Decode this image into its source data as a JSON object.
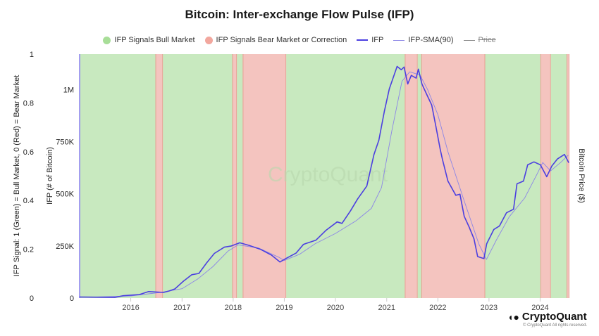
{
  "chart_data": {
    "type": "line",
    "title": "Bitcoin: Inter-exchange Flow Pulse (IFP)",
    "legend": [
      {
        "label": "IFP Signals Bull Market",
        "color": "#a8de98",
        "marker": "dot"
      },
      {
        "label": "IFP Signals Bear Market or Correction",
        "color": "#f2a79e",
        "marker": "dot"
      },
      {
        "label": "IFP",
        "color": "#4b3fe0",
        "marker": "line"
      },
      {
        "label": "IFP-SMA(90)",
        "color": "#8c86e6",
        "marker": "thin-line"
      },
      {
        "label": "Price",
        "color": "#777777",
        "marker": "line",
        "hidden": true
      }
    ],
    "legend_placement": "top",
    "y_left_outer": {
      "label": "IFP Signal: 1 (Green) = Bull Market, 0 (Red) = Bear Market",
      "range": [
        0,
        1
      ],
      "ticks": [
        "0",
        "0.2",
        "0.4",
        "0.6",
        "0.8",
        "1"
      ]
    },
    "y_left_inner": {
      "label": "IFP (# of Bitcoin)",
      "range": [
        0,
        1170000
      ],
      "ticks": [
        {
          "v": 0,
          "t": "0"
        },
        {
          "v": 250000,
          "t": "250K"
        },
        {
          "v": 500000,
          "t": "500K"
        },
        {
          "v": 750000,
          "t": "750K"
        },
        {
          "v": 1000000,
          "t": "1M"
        }
      ]
    },
    "y_right": {
      "label": "Bitcoin Price ($)"
    },
    "x_axis": {
      "range": [
        "2015-01-01",
        "2024-07-28"
      ],
      "ticks": [
        "2016",
        "2017",
        "2018",
        "2019",
        "2020",
        "2021",
        "2022",
        "2023",
        "2024"
      ]
    },
    "grid": false,
    "watermark": "CryptoQuant",
    "signal_regimes": [
      {
        "start": "2015-01-01",
        "end": "2016-06-25",
        "signal": 1
      },
      {
        "start": "2016-06-25",
        "end": "2016-08-18",
        "signal": 0
      },
      {
        "start": "2016-08-18",
        "end": "2017-12-25",
        "signal": 1
      },
      {
        "start": "2017-12-25",
        "end": "2018-01-28",
        "signal": 0
      },
      {
        "start": "2018-01-28",
        "end": "2018-03-10",
        "signal": 1
      },
      {
        "start": "2018-03-10",
        "end": "2019-01-15",
        "signal": 0
      },
      {
        "start": "2019-01-15",
        "end": "2021-05-10",
        "signal": 1
      },
      {
        "start": "2021-05-10",
        "end": "2021-08-10",
        "signal": 0
      },
      {
        "start": "2021-08-10",
        "end": "2021-09-05",
        "signal": 1
      },
      {
        "start": "2021-09-05",
        "end": "2022-12-05",
        "signal": 0
      },
      {
        "start": "2022-12-05",
        "end": "2024-01-03",
        "signal": 1
      },
      {
        "start": "2024-01-03",
        "end": "2024-03-18",
        "signal": 0
      },
      {
        "start": "2024-03-18",
        "end": "2024-07-08",
        "signal": 1
      },
      {
        "start": "2024-07-08",
        "end": "2024-07-28",
        "signal": 0
      }
    ],
    "series": [
      {
        "name": "IFP",
        "points": [
          [
            "2015-01-01",
            5000
          ],
          [
            "2015-09-09",
            3000
          ],
          [
            "2015-11-08",
            11000
          ],
          [
            "2016-03-03",
            17000
          ],
          [
            "2016-05-08",
            31000
          ],
          [
            "2016-08-22",
            27000
          ],
          [
            "2016-10-02",
            34000
          ],
          [
            "2016-11-11",
            44000
          ],
          [
            "2017-01-11",
            81000
          ],
          [
            "2017-03-12",
            112000
          ],
          [
            "2017-05-01",
            118000
          ],
          [
            "2017-06-26",
            169000
          ],
          [
            "2017-08-20",
            214000
          ],
          [
            "2017-10-30",
            244000
          ],
          [
            "2017-12-19",
            250000
          ],
          [
            "2018-02-17",
            265000
          ],
          [
            "2018-04-23",
            253000
          ],
          [
            "2018-07-18",
            233000
          ],
          [
            "2018-10-01",
            206000
          ],
          [
            "2018-12-01",
            173000
          ],
          [
            "2019-01-11",
            189000
          ],
          [
            "2019-03-27",
            216000
          ],
          [
            "2019-05-17",
            257000
          ],
          [
            "2019-06-01",
            261000
          ],
          [
            "2019-08-15",
            278000
          ],
          [
            "2019-10-24",
            324000
          ],
          [
            "2020-01-13",
            365000
          ],
          [
            "2020-02-17",
            358000
          ],
          [
            "2020-04-18",
            419000
          ],
          [
            "2020-06-08",
            476000
          ],
          [
            "2020-08-12",
            537000
          ],
          [
            "2020-10-02",
            689000
          ],
          [
            "2020-11-06",
            757000
          ],
          [
            "2020-12-16",
            899000
          ],
          [
            "2021-01-20",
            1004000
          ],
          [
            "2021-03-16",
            1111000
          ],
          [
            "2021-04-15",
            1095000
          ],
          [
            "2021-05-05",
            1108000
          ],
          [
            "2021-05-31",
            1027000
          ],
          [
            "2021-06-25",
            1068000
          ],
          [
            "2021-07-30",
            1055000
          ],
          [
            "2021-08-15",
            1098000
          ],
          [
            "2021-09-09",
            1027000
          ],
          [
            "2021-10-14",
            976000
          ],
          [
            "2021-11-18",
            926000
          ],
          [
            "2021-12-18",
            824000
          ],
          [
            "2022-01-18",
            713000
          ],
          [
            "2022-02-02",
            667000
          ],
          [
            "2022-03-14",
            561000
          ],
          [
            "2022-05-09",
            493000
          ],
          [
            "2022-06-08",
            498000
          ],
          [
            "2022-07-08",
            392000
          ],
          [
            "2022-08-12",
            341000
          ],
          [
            "2022-09-16",
            284000
          ],
          [
            "2022-10-12",
            199000
          ],
          [
            "2022-11-26",
            189000
          ],
          [
            "2022-12-16",
            261000
          ],
          [
            "2023-02-05",
            329000
          ],
          [
            "2023-03-17",
            346000
          ],
          [
            "2023-05-06",
            409000
          ],
          [
            "2023-06-25",
            426000
          ],
          [
            "2023-07-20",
            548000
          ],
          [
            "2023-09-04",
            561000
          ],
          [
            "2023-10-04",
            639000
          ],
          [
            "2023-11-18",
            653000
          ],
          [
            "2024-01-03",
            639000
          ],
          [
            "2024-02-17",
            582000
          ],
          [
            "2024-03-24",
            633000
          ],
          [
            "2024-05-03",
            667000
          ],
          [
            "2024-06-23",
            689000
          ],
          [
            "2024-07-23",
            650000
          ]
        ]
      },
      {
        "name": "IFP-SMA(90)",
        "points": [
          [
            "2015-01-01",
            3000
          ],
          [
            "2016-01-01",
            10000
          ],
          [
            "2016-08-01",
            27000
          ],
          [
            "2017-01-01",
            45000
          ],
          [
            "2017-04-20",
            90000
          ],
          [
            "2017-08-08",
            150000
          ],
          [
            "2017-11-25",
            225000
          ],
          [
            "2018-02-06",
            255000
          ],
          [
            "2018-07-01",
            240000
          ],
          [
            "2018-11-25",
            195000
          ],
          [
            "2019-01-01",
            180000
          ],
          [
            "2019-04-20",
            210000
          ],
          [
            "2019-08-08",
            260000
          ],
          [
            "2020-01-01",
            310000
          ],
          [
            "2020-05-26",
            370000
          ],
          [
            "2020-09-13",
            430000
          ],
          [
            "2020-11-25",
            530000
          ],
          [
            "2021-02-06",
            800000
          ],
          [
            "2021-04-20",
            1040000
          ],
          [
            "2021-06-14",
            1085000
          ],
          [
            "2021-08-26",
            1070000
          ],
          [
            "2021-10-20",
            1000000
          ],
          [
            "2022-01-01",
            880000
          ],
          [
            "2022-03-15",
            700000
          ],
          [
            "2022-07-01",
            480000
          ],
          [
            "2022-10-20",
            260000
          ],
          [
            "2022-12-14",
            185000
          ],
          [
            "2023-02-24",
            280000
          ],
          [
            "2023-05-26",
            390000
          ],
          [
            "2023-09-13",
            480000
          ],
          [
            "2023-12-14",
            600000
          ],
          [
            "2024-01-20",
            650000
          ],
          [
            "2024-03-15",
            610000
          ],
          [
            "2024-05-26",
            650000
          ],
          [
            "2024-07-20",
            685000
          ]
        ]
      }
    ]
  },
  "footer": {
    "brand": "CryptoQuant",
    "copyright": "© CryptoQuant All rights reserved."
  }
}
